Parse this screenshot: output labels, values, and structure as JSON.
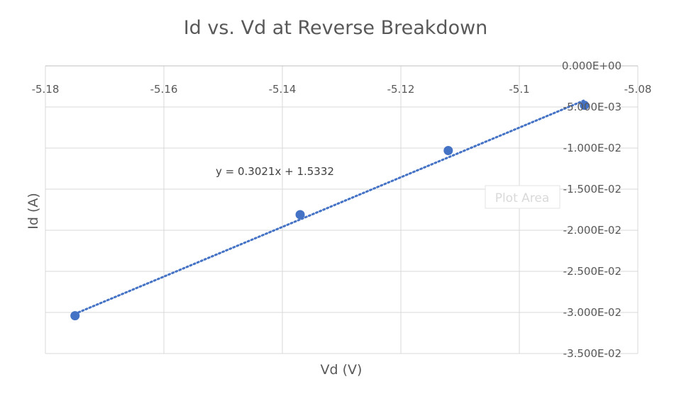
{
  "chart_data": {
    "type": "scatter",
    "title": "Id vs. Vd at Reverse Breakdown",
    "xlabel": "Vd (V)",
    "ylabel": "Id (A)",
    "xlim": [
      -5.18,
      -5.08
    ],
    "ylim": [
      -0.035,
      0
    ],
    "x_ticks": [
      -5.18,
      -5.16,
      -5.14,
      -5.12,
      -5.1,
      -5.08
    ],
    "x_tick_labels": [
      "-5.18",
      "-5.16",
      "-5.14",
      "-5.12",
      "-5.1",
      "-5.08"
    ],
    "y_ticks": [
      0,
      -0.005,
      -0.01,
      -0.015,
      -0.02,
      -0.025,
      -0.03,
      -0.035
    ],
    "y_tick_labels": [
      "0.000E+00",
      "-5.000E-03",
      "-1.000E-02",
      "-1.500E-02",
      "-2.000E-02",
      "-2.500E-02",
      "-3.000E-02",
      "-3.500E-02"
    ],
    "grid": true,
    "series": [
      {
        "x": [
          -5.175,
          -5.137,
          -5.112,
          -5.089
        ],
        "y": [
          -0.0304,
          -0.0181,
          -0.0103,
          -0.0048
        ],
        "color": "#4472c4"
      }
    ],
    "trendline": {
      "slope": 0.3021,
      "intercept": 1.5332,
      "equation": "y = 0.3021x + 1.5332",
      "style": "dotted",
      "color": "#4472c4"
    },
    "tooltip": "Plot Area"
  }
}
